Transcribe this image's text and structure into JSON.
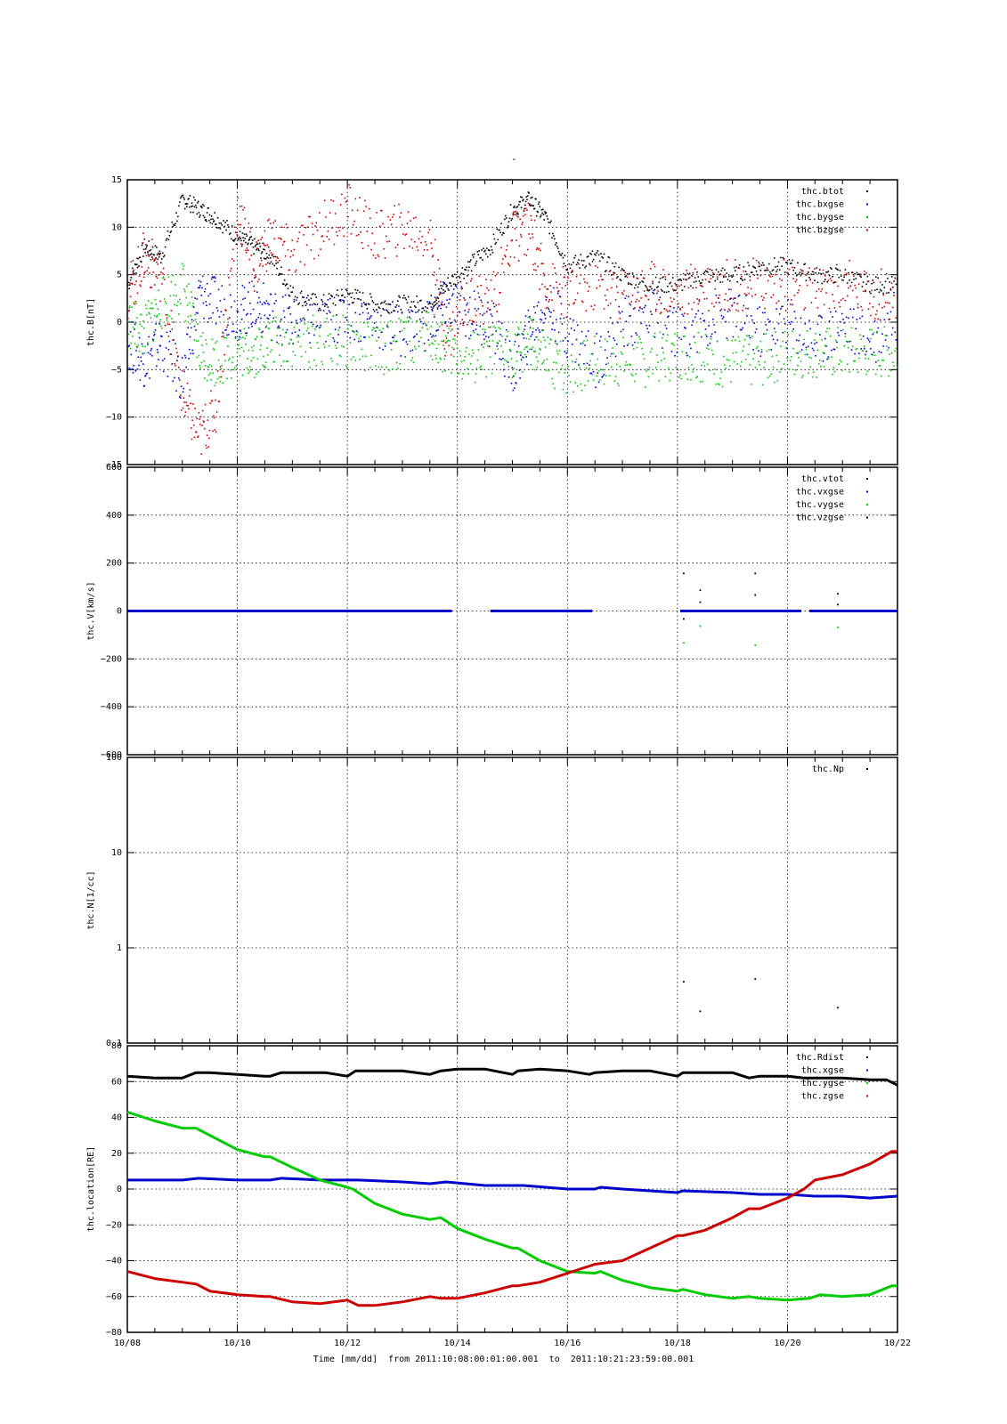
{
  "figure": {
    "title": "-",
    "x_axis_label": "Time [mm/dd]  from 2011:10:08:00:01:00.001  to  2011:10:21:23:59:00.001",
    "x_ticks": [
      "10/08",
      "10/10",
      "10/12",
      "10/14",
      "10/16",
      "10/18",
      "10/20",
      "10/22"
    ],
    "x_range_days": [
      8,
      22
    ],
    "colors": {
      "black": "#000000",
      "blue": "#0000cc",
      "green": "#00cc00",
      "red": "#cc0000"
    }
  },
  "chart_data": [
    {
      "type": "scatter",
      "ylabel": "thc.B[nT]",
      "ylim": [
        -15,
        15
      ],
      "yscale": "linear",
      "yticks": [
        -15,
        -10,
        -5,
        0,
        5,
        10,
        15
      ],
      "grid": true,
      "legend_position": "top-right",
      "series": [
        {
          "name": "thc.btot",
          "color": "#000000",
          "x": [
            8.0,
            8.3,
            8.6,
            9.0,
            9.3,
            9.6,
            10.0,
            10.3,
            10.6,
            11.0,
            11.5,
            12.0,
            12.5,
            13.0,
            13.5,
            13.8,
            14.2,
            14.6,
            15.0,
            15.3,
            15.6,
            16.0,
            16.5,
            17.0,
            17.5,
            18.0,
            18.5,
            19.0,
            19.5,
            20.0,
            20.5,
            21.0,
            21.5,
            22.0
          ],
          "y": [
            4,
            8,
            7,
            13,
            12,
            11,
            9,
            8,
            7,
            3,
            2,
            3,
            2,
            2,
            2,
            4,
            6,
            8,
            12,
            13,
            11,
            6,
            7,
            5,
            4,
            4,
            5,
            5,
            6,
            6,
            5,
            5,
            4,
            4
          ]
        },
        {
          "name": "thc.bxgse",
          "color": "#0000cc",
          "x": [
            8.0,
            8.3,
            8.6,
            9.0,
            9.3,
            9.6,
            10.0,
            10.3,
            10.6,
            11.0,
            11.5,
            12.0,
            12.5,
            13.0,
            13.5,
            13.8,
            14.2,
            14.6,
            15.0,
            15.3,
            15.6,
            16.0,
            16.5,
            17.0,
            17.5,
            18.0,
            18.5,
            19.0,
            19.5,
            20.0,
            20.5,
            21.0,
            21.5,
            22.0
          ],
          "y": [
            -2,
            -4,
            -2,
            -6,
            3,
            2,
            1,
            2,
            1,
            0,
            0,
            1,
            0,
            -1,
            0,
            2,
            1,
            0,
            -5,
            -1,
            2,
            -1,
            -4,
            0,
            1,
            -1,
            0,
            1,
            -1,
            0,
            -2,
            0,
            -2,
            1
          ]
        },
        {
          "name": "thc.bygse",
          "color": "#00cc00",
          "x": [
            8.0,
            8.3,
            8.6,
            9.0,
            9.3,
            9.6,
            10.0,
            10.3,
            10.6,
            11.0,
            11.5,
            12.0,
            12.5,
            13.0,
            13.5,
            13.8,
            14.2,
            14.6,
            15.0,
            15.3,
            15.6,
            16.0,
            16.5,
            17.0,
            17.5,
            18.0,
            18.5,
            19.0,
            19.5,
            20.0,
            20.5,
            21.0,
            21.5,
            22.0
          ],
          "y": [
            0,
            -1,
            2,
            4,
            -3,
            -4,
            -3,
            -3,
            -2,
            -2,
            -2,
            -2,
            -3,
            -2,
            -1,
            -3,
            -4,
            -3,
            -3,
            -2,
            -4,
            -5,
            -4,
            -4,
            -4,
            -3,
            -4,
            -4,
            -4,
            -3,
            -3,
            -3,
            -3,
            -3
          ]
        },
        {
          "name": "thc.bzgse",
          "color": "#cc0000",
          "x": [
            8.0,
            8.3,
            8.6,
            9.0,
            9.3,
            9.6,
            10.0,
            10.3,
            10.6,
            11.0,
            11.5,
            12.0,
            12.5,
            13.0,
            13.5,
            13.8,
            14.2,
            14.6,
            15.0,
            15.3,
            15.6,
            16.0,
            16.5,
            17.0,
            17.5,
            18.0,
            18.5,
            19.0,
            19.5,
            20.0,
            20.5,
            21.0,
            21.5,
            22.0
          ],
          "y": [
            3,
            7,
            5,
            -8,
            -12,
            -9,
            12,
            6,
            9,
            7,
            10,
            12,
            9,
            10,
            9,
            -2,
            3,
            2,
            9,
            10,
            4,
            3,
            4,
            3,
            4,
            3,
            4,
            4,
            4,
            4,
            3,
            4,
            3,
            3
          ]
        }
      ]
    },
    {
      "type": "scatter",
      "ylabel": "thc.V[km/s]",
      "ylim": [
        -600,
        600
      ],
      "yscale": "linear",
      "yticks": [
        -600,
        -400,
        -200,
        0,
        200,
        400,
        600
      ],
      "grid": true,
      "legend_position": "top-right",
      "series": [
        {
          "name": "thc.vtot",
          "color": "#000000",
          "x": [
            18.1,
            18.4,
            19.4,
            20.9
          ],
          "y": [
            160,
            90,
            160,
            75
          ]
        },
        {
          "name": "thc.vxgse",
          "color": "#0000cc",
          "x": [
            8.0,
            13.9,
            14.6,
            16.45,
            18.05,
            20.25,
            20.4,
            22.0
          ],
          "y": [
            0,
            0,
            0,
            0,
            0,
            0,
            0,
            0
          ]
        },
        {
          "name": "thc.vygse",
          "color": "#00cc00",
          "x": [
            18.1,
            18.4,
            19.4,
            20.9
          ],
          "y": [
            -130,
            -60,
            -140,
            -65
          ]
        },
        {
          "name": "thc.vzgse",
          "color": "#000000",
          "x": [
            18.1,
            18.4,
            19.4,
            20.9
          ],
          "y": [
            -30,
            40,
            70,
            30
          ]
        }
      ]
    },
    {
      "type": "scatter",
      "ylabel": "thc.N[1/cc]",
      "ylim": [
        0.1,
        100
      ],
      "yscale": "log",
      "yticks": [
        0.1,
        1,
        10,
        100
      ],
      "grid": true,
      "legend_position": "top-right",
      "series": [
        {
          "name": "thc.Np",
          "color": "#000000",
          "x": [
            18.1,
            18.4,
            19.4,
            20.9
          ],
          "y": [
            0.45,
            0.22,
            0.48,
            0.24
          ]
        }
      ]
    },
    {
      "type": "line",
      "ylabel": "thc.location[RE]",
      "ylim": [
        -80,
        80
      ],
      "yscale": "linear",
      "yticks": [
        -80,
        -60,
        -40,
        -20,
        0,
        20,
        40,
        60,
        80
      ],
      "grid": true,
      "legend_position": "top-right",
      "series": [
        {
          "name": "thc.Rdist",
          "color": "#000000",
          "x": [
            8.0,
            8.5,
            9.0,
            9.25,
            9.5,
            10.0,
            10.5,
            10.6,
            10.8,
            11.2,
            11.6,
            12.0,
            12.15,
            12.5,
            13.0,
            13.5,
            13.7,
            14.0,
            14.5,
            15.0,
            15.1,
            15.5,
            16.0,
            16.4,
            16.5,
            17.0,
            17.5,
            18.0,
            18.1,
            18.5,
            19.0,
            19.3,
            19.5,
            20.0,
            20.3,
            20.5,
            21.0,
            21.5,
            21.8,
            22.0
          ],
          "y": [
            63,
            62,
            62,
            65,
            65,
            64,
            63,
            63,
            65,
            65,
            65,
            63,
            66,
            66,
            66,
            64,
            66,
            67,
            67,
            64,
            66,
            67,
            66,
            64,
            65,
            66,
            66,
            63,
            65,
            65,
            65,
            62,
            63,
            63,
            62,
            62,
            62,
            61,
            61,
            58
          ]
        },
        {
          "name": "thc.xgse",
          "color": "#0000cc",
          "x": [
            8.0,
            9.0,
            9.3,
            10.0,
            10.6,
            10.8,
            11.5,
            12.0,
            12.2,
            13.0,
            13.5,
            13.8,
            14.5,
            15.0,
            15.2,
            16.0,
            16.5,
            16.6,
            17.0,
            18.0,
            18.1,
            19.0,
            19.5,
            20.0,
            20.5,
            21.0,
            21.5,
            22.0
          ],
          "y": [
            5,
            5,
            6,
            5,
            5,
            6,
            5,
            5,
            5,
            4,
            3,
            4,
            2,
            2,
            2,
            0,
            0,
            1,
            0,
            -2,
            -1,
            -2,
            -3,
            -3,
            -4,
            -4,
            -5,
            -4
          ]
        },
        {
          "name": "thc.ygse",
          "color": "#00cc00",
          "x": [
            8.0,
            8.5,
            9.0,
            9.25,
            10.0,
            10.5,
            10.6,
            11.0,
            11.5,
            12.0,
            12.1,
            12.5,
            13.0,
            13.5,
            13.7,
            14.0,
            14.5,
            15.0,
            15.1,
            15.5,
            16.0,
            16.5,
            16.6,
            17.0,
            17.5,
            18.0,
            18.1,
            18.5,
            19.0,
            19.3,
            19.5,
            20.0,
            20.4,
            20.6,
            21.0,
            21.5,
            21.9,
            22.0
          ],
          "y": [
            43,
            38,
            34,
            34,
            22,
            18,
            18,
            12,
            5,
            1,
            0,
            -8,
            -14,
            -17,
            -16,
            -22,
            -28,
            -33,
            -33,
            -40,
            -46,
            -47,
            -46,
            -51,
            -55,
            -57,
            -56,
            -59,
            -61,
            -60,
            -61,
            -62,
            -61,
            -59,
            -60,
            -59,
            -54,
            -54
          ]
        },
        {
          "name": "thc.zgse",
          "color": "#cc0000",
          "x": [
            8.0,
            8.5,
            9.0,
            9.25,
            9.5,
            10.0,
            10.5,
            10.6,
            11.0,
            11.5,
            12.0,
            12.2,
            12.5,
            13.0,
            13.5,
            13.7,
            14.0,
            14.5,
            15.0,
            15.1,
            15.5,
            16.0,
            16.4,
            16.5,
            17.0,
            17.5,
            18.0,
            18.1,
            18.5,
            19.0,
            19.3,
            19.5,
            20.0,
            20.3,
            20.5,
            21.0,
            21.5,
            21.9,
            22.0
          ],
          "y": [
            -46,
            -50,
            -52,
            -53,
            -57,
            -59,
            -60,
            -60,
            -63,
            -64,
            -62,
            -65,
            -65,
            -63,
            -60,
            -61,
            -61,
            -58,
            -54,
            -54,
            -52,
            -47,
            -43,
            -42,
            -40,
            -33,
            -26,
            -26,
            -23,
            -16,
            -11,
            -11,
            -5,
            0,
            5,
            8,
            14,
            21,
            21
          ]
        }
      ]
    }
  ]
}
